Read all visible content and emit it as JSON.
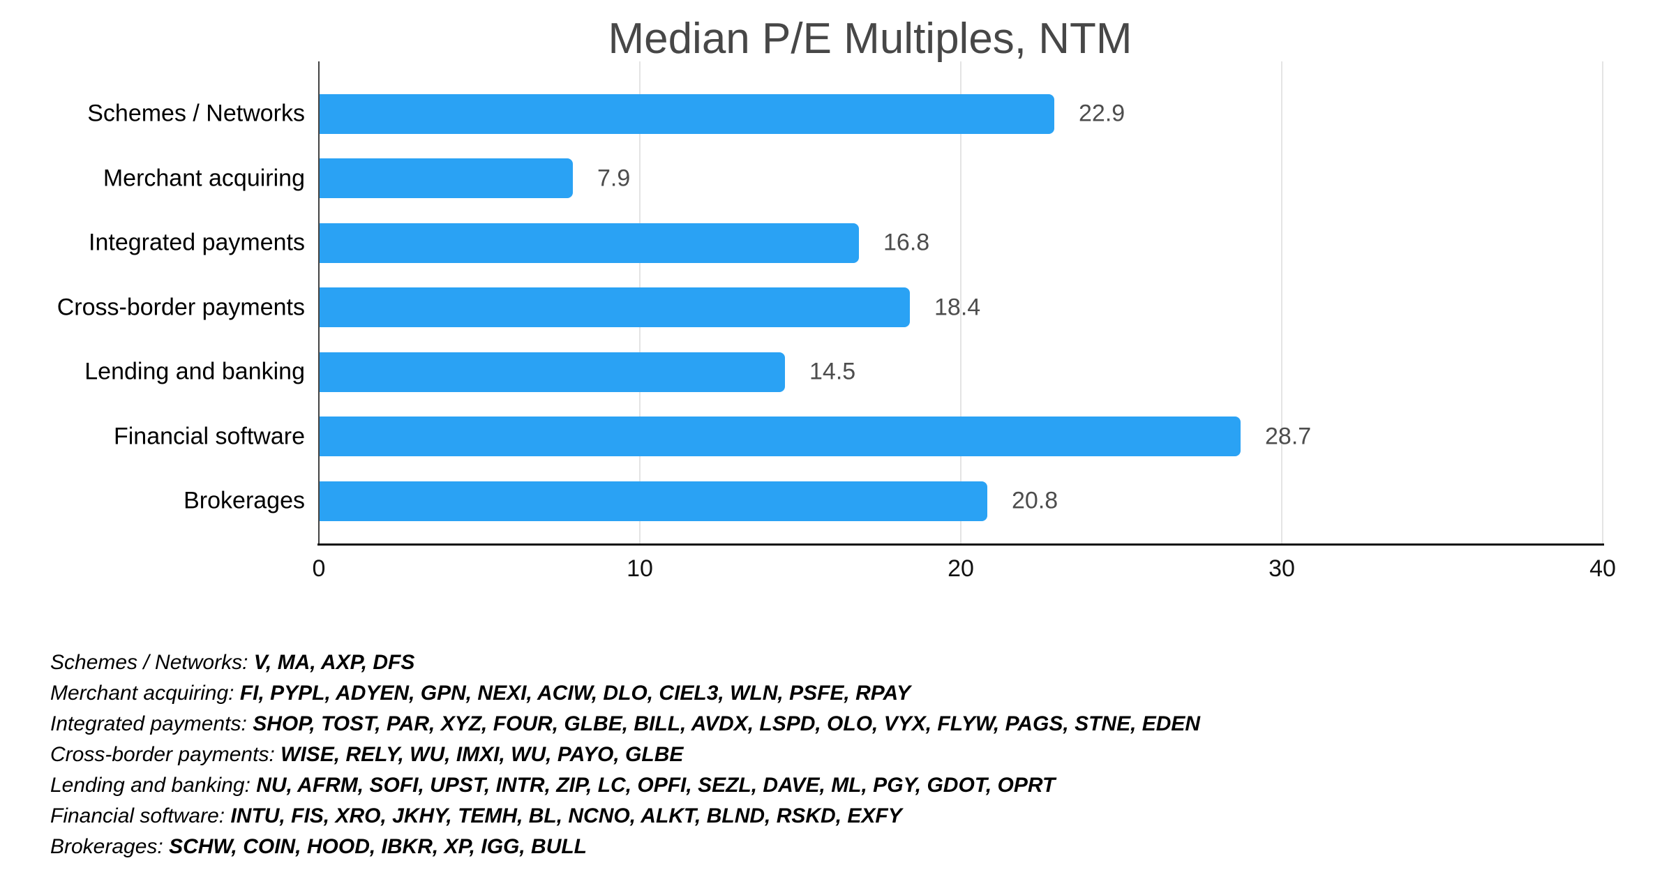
{
  "chart_data": {
    "type": "bar",
    "orientation": "horizontal",
    "title": "Median P/E Multiples, NTM",
    "categories": [
      "Schemes / Networks",
      "Merchant acquiring",
      "Integrated payments",
      "Cross-border payments",
      "Lending and banking",
      "Financial software",
      "Brokerages"
    ],
    "values": [
      22.9,
      7.9,
      16.8,
      18.4,
      14.5,
      28.7,
      20.8
    ],
    "value_labels": [
      "22.9",
      "7.9",
      "16.8",
      "18.4",
      "14.5",
      "28.7",
      "20.8"
    ],
    "xlabel": "",
    "ylabel": "",
    "xlim": [
      0,
      40
    ],
    "xticks": [
      0,
      10,
      20,
      30,
      40
    ],
    "grid": "vertical-gridlines-on",
    "legend_position": "none",
    "bar_color": "#2aa2f4",
    "title_color": "#474747",
    "value_label_color": "#4d4d4d",
    "category_label_color": "#000000",
    "tick_label_color": "#111111",
    "gridline_color": "#e4e4e4"
  },
  "footnotes": [
    {
      "prefix": "Schemes / Networks:",
      "tickers": "V, MA, AXP, DFS"
    },
    {
      "prefix": "Merchant acquiring:",
      "tickers": "FI, PYPL, ADYEN, GPN, NEXI, ACIW, DLO, CIEL3, WLN, PSFE, RPAY"
    },
    {
      "prefix": "Integrated payments:",
      "tickers": "SHOP, TOST, PAR, XYZ, FOUR, GLBE, BILL, AVDX, LSPD, OLO, VYX, FLYW, PAGS, STNE, EDEN"
    },
    {
      "prefix": "Cross-border payments:",
      "tickers": "WISE, RELY, WU, IMXI, WU, PAYO, GLBE"
    },
    {
      "prefix": "Lending and banking:",
      "tickers": "NU, AFRM, SOFI, UPST, INTR, ZIP, LC, OPFI, SEZL, DAVE, ML, PGY, GDOT, OPRT"
    },
    {
      "prefix": "Financial software:",
      "tickers": "INTU, FIS, XRO, JKHY, TEMH, BL, NCNO, ALKT, BLND, RSKD, EXFY"
    },
    {
      "prefix": "Brokerages:",
      "tickers": "SCHW, COIN, HOOD, IBKR, XP, IGG, BULL"
    }
  ]
}
